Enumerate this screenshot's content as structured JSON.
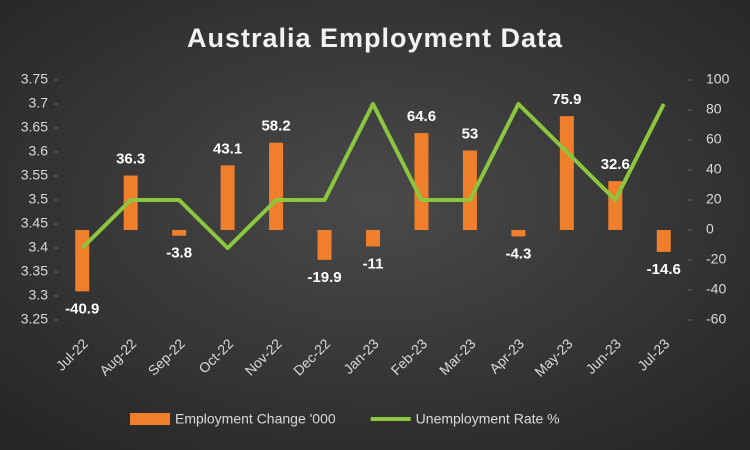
{
  "chart_data": {
    "type": "bar_line",
    "title": "Australia Employment Data",
    "categories": [
      "Jul-22",
      "Aug-22",
      "Sep-22",
      "Oct-22",
      "Nov-22",
      "Dec-22",
      "Jan-23",
      "Feb-23",
      "Mar-23",
      "Apr-23",
      "May-23",
      "Jun-23",
      "Jul-23"
    ],
    "series": [
      {
        "name": "Employment Change '000",
        "type": "bar",
        "axis": "y2",
        "color": "#f07f2c",
        "values": [
          -40.9,
          36.3,
          -3.8,
          43.1,
          58.2,
          -19.9,
          -11,
          64.6,
          53,
          -4.3,
          75.9,
          32.6,
          -14.6
        ]
      },
      {
        "name": "Unemployment Rate %",
        "type": "line",
        "axis": "y",
        "color": "#8cc63f",
        "values": [
          3.4,
          3.5,
          3.5,
          3.4,
          3.5,
          3.5,
          3.7,
          3.5,
          3.5,
          3.7,
          3.6,
          3.5,
          3.7
        ]
      }
    ],
    "ylim": [
      3.25,
      3.75
    ],
    "yticks": [
      3.25,
      3.3,
      3.35,
      3.4,
      3.45,
      3.5,
      3.55,
      3.6,
      3.65,
      3.7,
      3.75
    ],
    "y2lim": [
      -60,
      100
    ],
    "y2ticks": [
      -60,
      -40,
      -20,
      0,
      20,
      40,
      60,
      80,
      100
    ],
    "legend": "bottom"
  }
}
